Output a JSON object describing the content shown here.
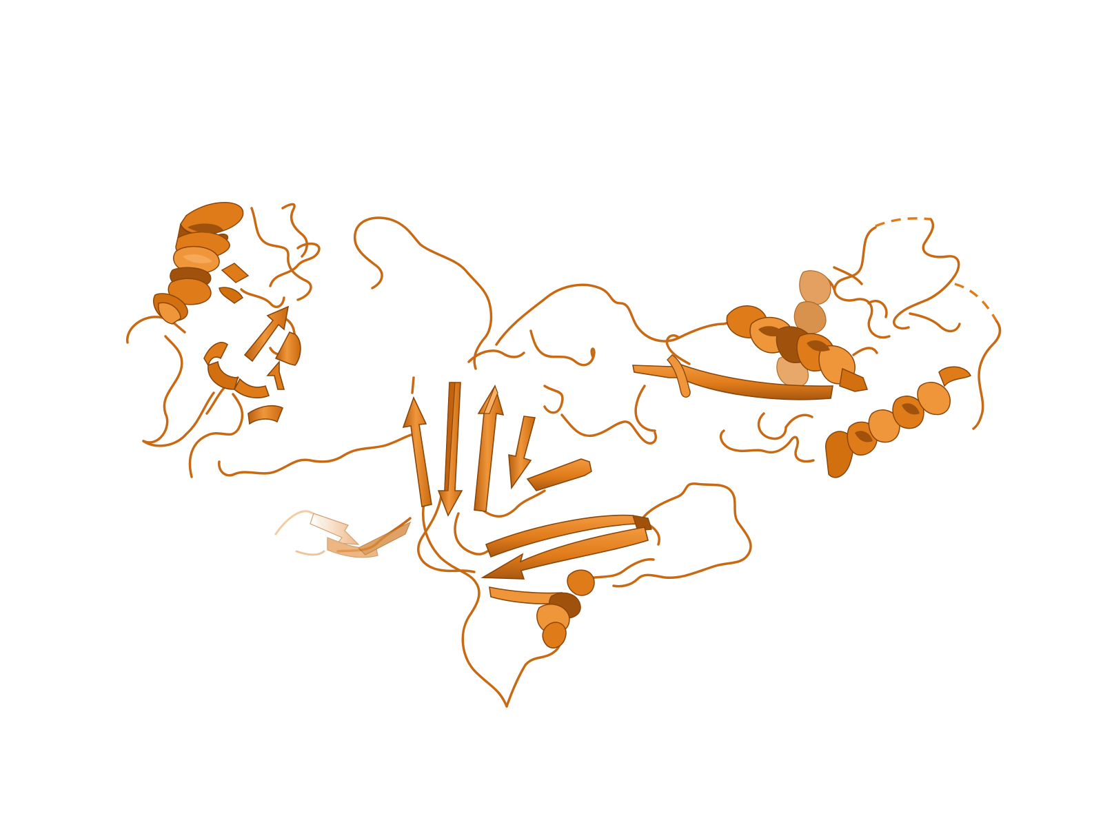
{
  "scene": {
    "kind": "protein-cartoon-render",
    "background_color": "#ffffff",
    "colors": {
      "base": "#e07b1a",
      "light": "#f0963a",
      "highlight": "#f7b066",
      "dark": "#a0520c",
      "edge": "#8a4508",
      "pale": "#f2c08e"
    },
    "domains": [
      {
        "id": "n-terminal-domain",
        "elements": [
          "alpha-helix",
          "beta-hairpin",
          "loops"
        ]
      },
      {
        "id": "central-beta-sandwich-domain",
        "elements": [
          "beta-sheet",
          "beta-hairpin",
          "short-helix",
          "loops"
        ]
      },
      {
        "id": "c-terminal-helical-domain",
        "elements": [
          "alpha-helix",
          "alpha-helix",
          "beta-strand",
          "loops",
          "disordered-gaps"
        ]
      }
    ]
  }
}
